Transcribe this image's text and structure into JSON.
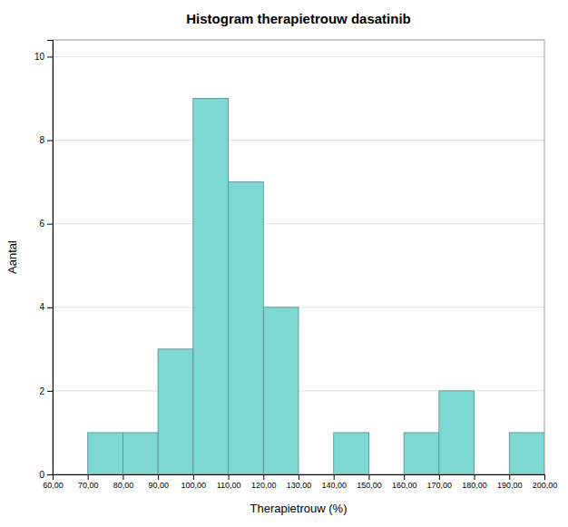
{
  "chart_data": {
    "type": "histogram",
    "title": "Histogram therapietrouw dasatinib",
    "xlabel": "Therapietrouw (%)",
    "ylabel": "Aantal",
    "color": "#7DD8D4",
    "bins": [
      60,
      70,
      80,
      90,
      100,
      110,
      120,
      130,
      140,
      150,
      160,
      170,
      180,
      190,
      200
    ],
    "values": [
      0,
      1,
      1,
      3,
      9,
      7,
      4,
      0,
      1,
      0,
      1,
      2,
      0,
      1
    ],
    "xlim": [
      60,
      200
    ],
    "ylim": [
      0,
      10.4
    ],
    "xticks": [
      {
        "value": 60,
        "label": "60,00"
      },
      {
        "value": 70,
        "label": "70,00"
      },
      {
        "value": 80,
        "label": "80,00"
      },
      {
        "value": 90,
        "label": "90,00"
      },
      {
        "value": 100,
        "label": "100,00"
      },
      {
        "value": 110,
        "label": "110,00"
      },
      {
        "value": 120,
        "label": "120,00"
      },
      {
        "value": 130,
        "label": "130,00"
      },
      {
        "value": 140,
        "label": "140,00"
      },
      {
        "value": 150,
        "label": "150,00"
      },
      {
        "value": 160,
        "label": "160,00"
      },
      {
        "value": 170,
        "label": "170,00"
      },
      {
        "value": 180,
        "label": "180,00"
      },
      {
        "value": 190,
        "label": "190,00"
      },
      {
        "value": 200,
        "label": "200,00"
      }
    ],
    "yticks": [
      0,
      2,
      4,
      6,
      8,
      10
    ],
    "grid": true
  }
}
